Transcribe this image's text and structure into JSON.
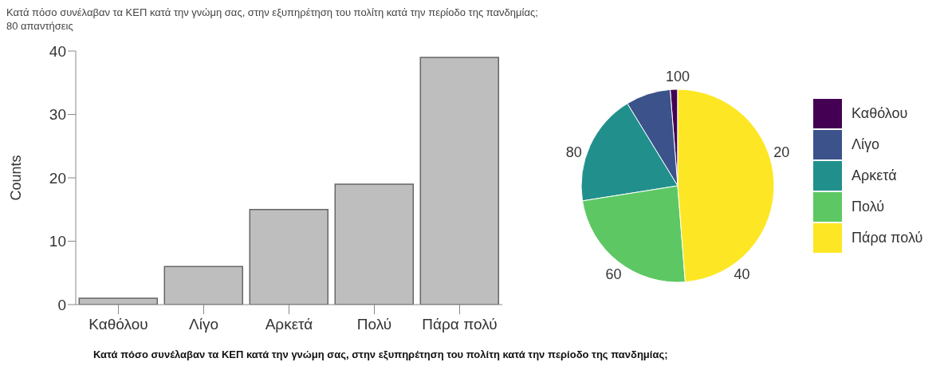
{
  "chart_data": [
    {
      "type": "bar",
      "title": "Κατά πόσο συνέλαβαν τα ΚΕΠ κατά την γνώμη σας, στην εξυπηρέτηση του πολίτη κατά την περίοδο της πανδημίας;",
      "subtitle": "80 απαντήσεις",
      "ylabel": "Counts",
      "annotations": [
        "Κατά πόσο συνέλαβαν τα ΚΕΠ κατά την γνώμη σας, στην εξυπηρέτηση του πολίτη κατά την περίοδο της πανδημίας;"
      ],
      "categories": [
        "Καθόλου",
        "Λίγο",
        "Αρκετά",
        "Πολύ",
        "Πάρα πολύ"
      ],
      "values": [
        1,
        6,
        15,
        19,
        39
      ],
      "color": "#bebebe",
      "ylim": [
        0,
        40
      ],
      "yticks": [
        0,
        10,
        20,
        30,
        40
      ],
      "grid": false
    },
    {
      "type": "pie",
      "categories": [
        "Καθόλου",
        "Λίγο",
        "Αρκετά",
        "Πολύ",
        "Πάρα πολύ"
      ],
      "values": [
        1.25,
        7.5,
        18.75,
        23.75,
        48.75
      ],
      "colors": [
        "#440154",
        "#3b528b",
        "#21908c",
        "#5dc863",
        "#fde725"
      ],
      "annotations": [
        "20",
        "40",
        "60",
        "80",
        "100"
      ],
      "legend": "right"
    }
  ]
}
